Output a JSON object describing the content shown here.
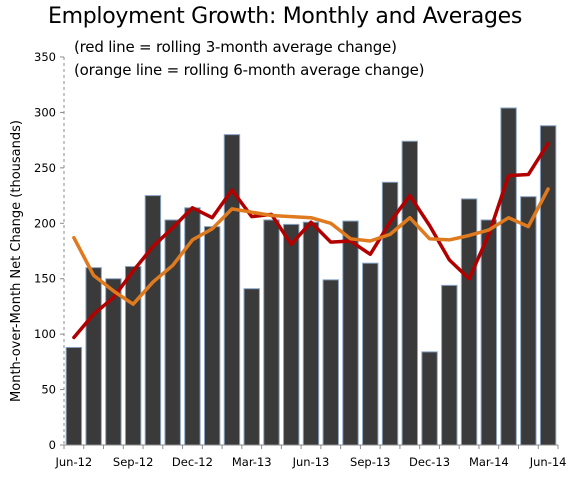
{
  "chart_data": {
    "type": "bar",
    "title": "Employment Growth: Monthly and Averages",
    "subtitle_lines": [
      "(red line = rolling  3-month average change)",
      "(orange line = rolling 6-month average change)"
    ],
    "ylabel": "Month-over-Month Net Change (thousands)",
    "xlabel": "",
    "ylim": [
      0,
      350
    ],
    "yticks": [
      0,
      50,
      100,
      150,
      200,
      250,
      300,
      350
    ],
    "x_tick_labels": [
      {
        "index": 0,
        "label": "Jun-12"
      },
      {
        "index": 3,
        "label": "Sep-12"
      },
      {
        "index": 6,
        "label": "Dec-12"
      },
      {
        "index": 9,
        "label": "Mar-13"
      },
      {
        "index": 12,
        "label": "Jun-13"
      },
      {
        "index": 15,
        "label": "Sep-13"
      },
      {
        "index": 18,
        "label": "Dec-13"
      },
      {
        "index": 21,
        "label": "Mar-14"
      },
      {
        "index": 24,
        "label": "Jun-14"
      }
    ],
    "categories": [
      "Jun-12",
      "Jul-12",
      "Aug-12",
      "Sep-12",
      "Oct-12",
      "Nov-12",
      "Dec-12",
      "Jan-13",
      "Feb-13",
      "Mar-13",
      "Apr-13",
      "May-13",
      "Jun-13",
      "Jul-13",
      "Aug-13",
      "Sep-13",
      "Oct-13",
      "Nov-13",
      "Dec-13",
      "Jan-14",
      "Feb-14",
      "Mar-14",
      "Apr-14",
      "May-14",
      "Jun-14"
    ],
    "series": [
      {
        "kind": "bar",
        "color": "#3a3a3a",
        "values": [
          88,
          160,
          150,
          161,
          225,
          203,
          214,
          197,
          280,
          141,
          203,
          199,
          201,
          149,
          202,
          164,
          237,
          274,
          84,
          144,
          222,
          203,
          304,
          224,
          288
        ]
      },
      {
        "kind": "line",
        "color": "#b20000",
        "values": [
          97,
          118,
          133,
          157,
          179,
          196,
          214,
          205,
          230,
          206,
          208,
          181,
          201,
          183,
          184,
          172,
          201,
          225,
          198,
          167,
          150,
          190,
          243,
          244,
          272
        ]
      },
      {
        "kind": "line",
        "color": "#e07a1f",
        "values": [
          187,
          153,
          139,
          127,
          147,
          162,
          185,
          195,
          213,
          210,
          207,
          206,
          205,
          200,
          186,
          184,
          190,
          205,
          186,
          185,
          189,
          194,
          205,
          197,
          231
        ]
      }
    ],
    "grid": false,
    "legend": "none"
  }
}
